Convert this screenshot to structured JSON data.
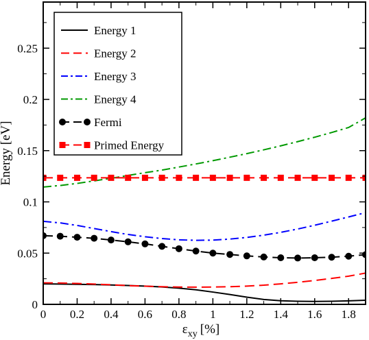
{
  "chart_data": {
    "type": "line",
    "title": "",
    "xlabel": {
      "main": "ε",
      "sub": "xy",
      "unit": "[%]"
    },
    "ylabel": "Energy [eV]",
    "xlim": [
      0,
      1.9
    ],
    "ylim": [
      0,
      0.295
    ],
    "x_ticks": [
      0,
      0.2,
      0.4,
      0.6,
      0.8,
      1,
      1.2,
      1.4,
      1.6,
      1.8
    ],
    "x_tick_labels": [
      "0",
      "0.2",
      "0.4",
      "0.6",
      "0.8",
      "1",
      "1.2",
      "1.4",
      "1.6",
      "1.8"
    ],
    "y_ticks": [
      0,
      0.05,
      0.1,
      0.15,
      0.2,
      0.25
    ],
    "y_tick_labels": [
      "0",
      "0.05",
      "0.1",
      "0.15",
      "0.2",
      "0.25"
    ],
    "grid": false,
    "legend_position": "top-left",
    "series": [
      {
        "name": "Energy 1",
        "color": "#000000",
        "dash": "solid",
        "marker": "none",
        "x": [
          0,
          0.1,
          0.2,
          0.3,
          0.4,
          0.5,
          0.6,
          0.7,
          0.8,
          0.9,
          1.0,
          1.1,
          1.2,
          1.3,
          1.4,
          1.5,
          1.6,
          1.7,
          1.8,
          1.9
        ],
        "y": [
          0.02,
          0.0198,
          0.0196,
          0.0193,
          0.0189,
          0.0184,
          0.0178,
          0.017,
          0.0158,
          0.0142,
          0.012,
          0.0096,
          0.007,
          0.0048,
          0.0035,
          0.003,
          0.0028,
          0.003,
          0.0034,
          0.004
        ]
      },
      {
        "name": "Energy 2",
        "color": "#ff0000",
        "dash": "dashed",
        "marker": "none",
        "x": [
          0,
          0.1,
          0.2,
          0.3,
          0.4,
          0.5,
          0.6,
          0.7,
          0.8,
          0.9,
          1.0,
          1.1,
          1.2,
          1.3,
          1.4,
          1.5,
          1.6,
          1.7,
          1.8,
          1.9
        ],
        "y": [
          0.021,
          0.0208,
          0.0204,
          0.0198,
          0.0191,
          0.0183,
          0.0177,
          0.0172,
          0.0169,
          0.0168,
          0.0169,
          0.0172,
          0.0178,
          0.0187,
          0.02,
          0.0215,
          0.0233,
          0.0253,
          0.0275,
          0.0305
        ]
      },
      {
        "name": "Energy 3",
        "color": "#0000ff",
        "dash": "dashdot",
        "marker": "none",
        "x": [
          0,
          0.1,
          0.2,
          0.3,
          0.4,
          0.5,
          0.6,
          0.7,
          0.8,
          0.9,
          1.0,
          1.1,
          1.2,
          1.3,
          1.4,
          1.5,
          1.6,
          1.7,
          1.8,
          1.9
        ],
        "y": [
          0.081,
          0.0795,
          0.077,
          0.074,
          0.071,
          0.0682,
          0.066,
          0.0642,
          0.063,
          0.0625,
          0.0627,
          0.0637,
          0.0653,
          0.0675,
          0.0703,
          0.0735,
          0.0772,
          0.0812,
          0.0853,
          0.0895
        ]
      },
      {
        "name": "Energy 4",
        "color": "#009900",
        "dash": "dashdot",
        "marker": "none",
        "x": [
          0,
          0.1,
          0.2,
          0.3,
          0.4,
          0.5,
          0.6,
          0.7,
          0.8,
          0.9,
          1.0,
          1.1,
          1.2,
          1.3,
          1.4,
          1.5,
          1.6,
          1.7,
          1.8,
          1.9
        ],
        "y": [
          0.1145,
          0.116,
          0.118,
          0.1205,
          0.123,
          0.1258,
          0.1285,
          0.131,
          0.134,
          0.137,
          0.1402,
          0.1436,
          0.1471,
          0.1508,
          0.1547,
          0.1588,
          0.1631,
          0.1677,
          0.1726,
          0.182
        ]
      },
      {
        "name": "Fermi",
        "color": "#000000",
        "dash": "dashed",
        "marker": "circle",
        "x": [
          0,
          0.1,
          0.2,
          0.3,
          0.4,
          0.5,
          0.6,
          0.7,
          0.8,
          0.9,
          1.0,
          1.1,
          1.2,
          1.3,
          1.4,
          1.5,
          1.6,
          1.7,
          1.8,
          1.9
        ],
        "y": [
          0.067,
          0.0665,
          0.0655,
          0.0645,
          0.0628,
          0.061,
          0.059,
          0.0566,
          0.0543,
          0.052,
          0.05,
          0.0487,
          0.0473,
          0.0462,
          0.0455,
          0.0452,
          0.0455,
          0.046,
          0.047,
          0.0485
        ]
      },
      {
        "name": "Primed Energy",
        "color": "#ff0000",
        "dash": "dashed",
        "marker": "square",
        "x": [
          0,
          0.1,
          0.2,
          0.3,
          0.4,
          0.5,
          0.6,
          0.7,
          0.8,
          0.9,
          1.0,
          1.1,
          1.2,
          1.3,
          1.4,
          1.5,
          1.6,
          1.7,
          1.8,
          1.9
        ],
        "y": [
          0.1235,
          0.1235,
          0.1235,
          0.1235,
          0.1235,
          0.1235,
          0.1235,
          0.1235,
          0.1235,
          0.1235,
          0.1235,
          0.1235,
          0.1235,
          0.1235,
          0.1235,
          0.1235,
          0.1235,
          0.1235,
          0.1235,
          0.1235
        ]
      }
    ]
  }
}
